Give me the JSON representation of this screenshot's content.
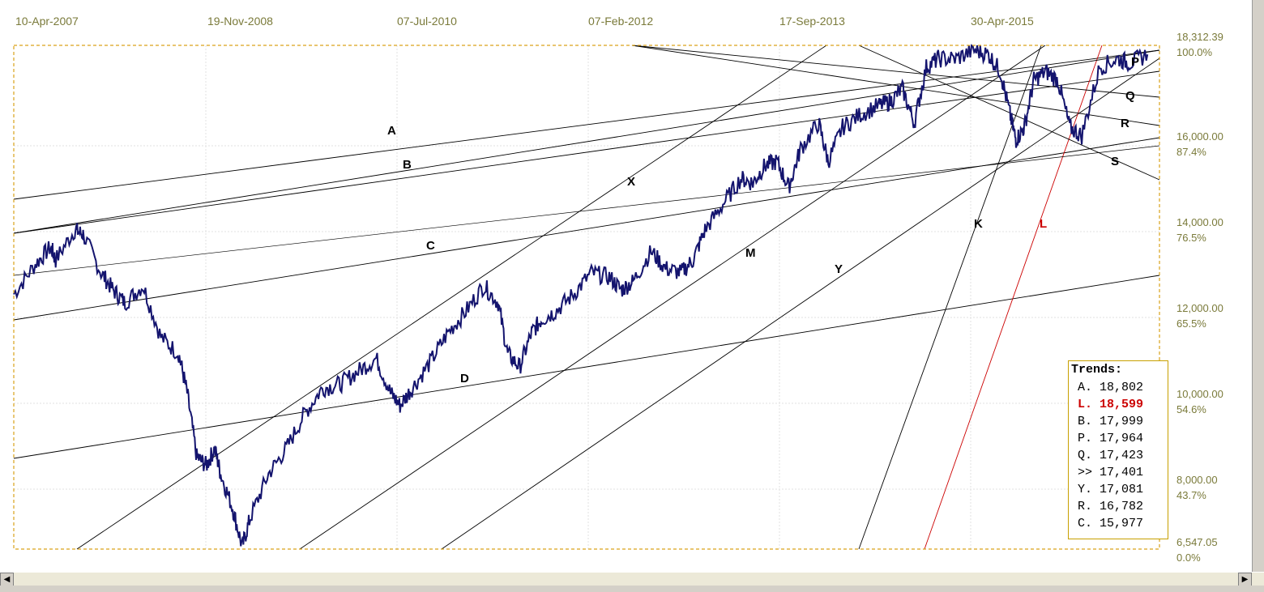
{
  "chart_data": {
    "type": "line",
    "x_dates": [
      "10-Apr-2007",
      "19-Nov-2008",
      "07-Jul-2010",
      "07-Feb-2012",
      "17-Sep-2013",
      "30-Apr-2015"
    ],
    "y_price_ticks": [
      "18,312.39",
      "16,000.00",
      "14,000.00",
      "12,000.00",
      "10,000.00",
      "8,000.00",
      "6,547.05"
    ],
    "y_percent_ticks": [
      "100.0%",
      "87.4%",
      "76.5%",
      "65.5%",
      "54.6%",
      "43.7%",
      "0.0%"
    ],
    "ylim": [
      6547.05,
      18312.39
    ],
    "grid": true,
    "series": [
      {
        "color": "#14146e",
        "x": [
          2007.27,
          2007.45,
          2007.58,
          2007.62,
          2007.78,
          2007.85,
          2008.0,
          2008.1,
          2008.2,
          2008.35,
          2008.5,
          2008.65,
          2008.72,
          2008.8,
          2008.88,
          2008.95,
          2009.0,
          2009.1,
          2009.18,
          2009.25,
          2009.4,
          2009.55,
          2009.7,
          2009.85,
          2010.0,
          2010.15,
          2010.3,
          2010.42,
          2010.5,
          2010.6,
          2010.75,
          2010.9,
          2011.05,
          2011.2,
          2011.32,
          2011.4,
          2011.5,
          2011.6,
          2011.68,
          2011.8,
          2011.95,
          2012.1,
          2012.25,
          2012.35,
          2012.45,
          2012.6,
          2012.72,
          2012.85,
          2012.95,
          2013.05,
          2013.2,
          2013.35,
          2013.45,
          2013.55,
          2013.65,
          2013.75,
          2013.85,
          2014.0,
          2014.08,
          2014.2,
          2014.35,
          2014.5,
          2014.6,
          2014.7,
          2014.8,
          2014.9,
          2015.0,
          2015.15,
          2015.3,
          2015.42,
          2015.52,
          2015.6,
          2015.65,
          2015.72,
          2015.8,
          2015.9,
          2016.0,
          2016.1,
          2016.2,
          2016.35,
          2016.5,
          2016.6,
          2016.75
        ],
        "values": [
          12500,
          13200,
          13600,
          13300,
          14000,
          13900,
          13000,
          12600,
          12300,
          12700,
          11500,
          11100,
          10200,
          8700,
          8500,
          8900,
          8300,
          7500,
          6600,
          7300,
          8300,
          8900,
          9700,
          10300,
          10400,
          10700,
          11000,
          10200,
          9900,
          10300,
          10900,
          11600,
          12100,
          12700,
          12300,
          11100,
          10800,
          11600,
          11900,
          12100,
          12500,
          13000,
          12900,
          12600,
          12800,
          13500,
          13100,
          13000,
          13300,
          14000,
          14600,
          15200,
          15100,
          15500,
          15600,
          15000,
          15900,
          16500,
          15600,
          16400,
          16700,
          16900,
          17000,
          17300,
          16500,
          17800,
          18000,
          18000,
          18200,
          18100,
          17700,
          16700,
          16100,
          16400,
          17500,
          17700,
          17500,
          16400,
          16200,
          17800,
          18000,
          17900,
          18100
        ]
      }
    ],
    "trendlines": [
      {
        "name": "A",
        "color": "#000000"
      },
      {
        "name": "B",
        "color": "#000000"
      },
      {
        "name": "C",
        "color": "#000000"
      },
      {
        "name": "D",
        "color": "#000000"
      },
      {
        "name": "X",
        "color": "#000000"
      },
      {
        "name": "M",
        "color": "#000000"
      },
      {
        "name": "Y",
        "color": "#000000"
      },
      {
        "name": "K",
        "color": "#000000"
      },
      {
        "name": "L",
        "color": "#cc0000"
      },
      {
        "name": "P",
        "color": "#000000"
      },
      {
        "name": "Q",
        "color": "#000000"
      },
      {
        "name": "R",
        "color": "#000000"
      },
      {
        "name": "S",
        "color": "#000000"
      }
    ],
    "trends_box": {
      "title": "Trends:",
      "items": [
        {
          "label": "A. 18,802",
          "color": "#000000"
        },
        {
          "label": "L. 18,599",
          "color": "#cc0000"
        },
        {
          "label": "B. 17,999",
          "color": "#000000"
        },
        {
          "label": "P. 17,964",
          "color": "#000000"
        },
        {
          "label": "Q. 17,423",
          "color": "#000000"
        },
        {
          "label": ">> 17,401",
          "color": "#000000"
        },
        {
          "label": "Y. 17,081",
          "color": "#000000"
        },
        {
          "label": "R. 16,782",
          "color": "#000000"
        },
        {
          "label": "C. 15,977",
          "color": "#000000"
        }
      ]
    }
  },
  "ui": {
    "scroll_left_icon": "arrow-left-icon",
    "scroll_right_icon": "arrow-right-icon"
  }
}
